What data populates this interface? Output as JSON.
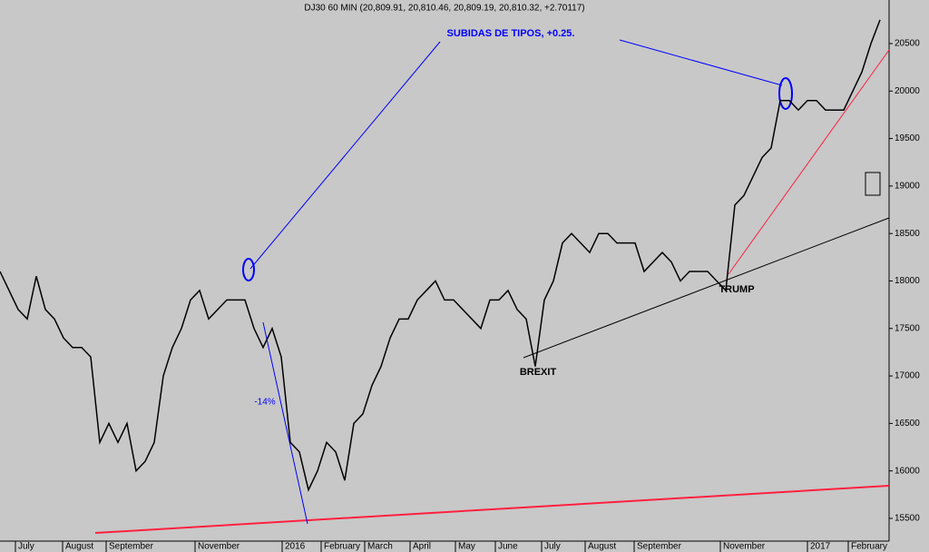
{
  "chart_data": {
    "type": "line",
    "title": "DJ30 60 MIN (20,809.91, 20,810.46, 20,809.19, 20,810.32, +2.70117)",
    "annotations": [
      "SUBIDAS DE TIPOS, +0.25.",
      "-14%",
      "BREXIT",
      "TRUMP"
    ],
    "series": [
      {
        "name": "DJ30",
        "color": "#000000",
        "values": [
          18100,
          17900,
          17700,
          17600,
          18050,
          17700,
          17600,
          17400,
          17300,
          17300,
          17200,
          16300,
          16500,
          16300,
          16500,
          16000,
          16100,
          16300,
          17000,
          17300,
          17500,
          17800,
          17900,
          17600,
          17700,
          17800,
          17800,
          17800,
          17500,
          17300,
          17500,
          17200,
          16300,
          16200,
          15800,
          16000,
          16300,
          16200,
          15900,
          16500,
          16600,
          16900,
          17100,
          17400,
          17600,
          17600,
          17800,
          17900,
          18000,
          17800,
          17800,
          17700,
          17600,
          17500,
          17800,
          17800,
          17900,
          17700,
          17600,
          17100,
          17800,
          18000,
          18400,
          18500,
          18400,
          18300,
          18500,
          18500,
          18400,
          18400,
          18400,
          18100,
          18200,
          18300,
          18200,
          18000,
          18100,
          18100,
          18100,
          18000,
          17900,
          18800,
          18900,
          19100,
          19300,
          19400,
          19900,
          19900,
          19800,
          19900,
          19900,
          19800,
          19800,
          19800,
          20000,
          20200,
          20500,
          20750
        ]
      }
    ],
    "xlim": [
      0,
      98
    ],
    "xticks": [
      {
        "value": 2,
        "label": "July"
      },
      {
        "value": 7.2,
        "label": "August"
      },
      {
        "value": 12,
        "label": "September"
      },
      {
        "value": 21.8,
        "label": "November"
      },
      {
        "value": 31.4,
        "label": "2016"
      },
      {
        "value": 35.7,
        "label": "February"
      },
      {
        "value": 40.5,
        "label": "March"
      },
      {
        "value": 45.5,
        "label": "April"
      },
      {
        "value": 50.5,
        "label": "May"
      },
      {
        "value": 54.9,
        "label": "June"
      },
      {
        "value": 60,
        "label": "July"
      },
      {
        "value": 64.8,
        "label": "August"
      },
      {
        "value": 70.2,
        "label": "September"
      },
      {
        "value": 79.7,
        "label": "November"
      },
      {
        "value": 89.3,
        "label": "2017"
      },
      {
        "value": 93.8,
        "label": "February"
      }
    ],
    "ylim": [
      15318,
      20959
    ],
    "yticks": [
      15500,
      16000,
      16500,
      17000,
      17500,
      18000,
      18500,
      19000,
      19500,
      20000,
      20500
    ]
  }
}
